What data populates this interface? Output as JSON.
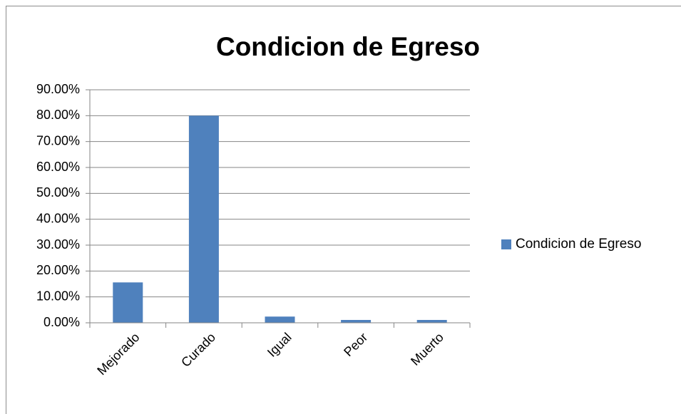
{
  "chart_data": {
    "type": "bar",
    "title": "Condicion de Egreso",
    "categories": [
      "Mejorado",
      "Curado",
      "Igual",
      "Peor",
      "Muerto"
    ],
    "series": [
      {
        "name": "Condicion de Egreso",
        "color": "#4f81bd",
        "values": [
          15.6,
          80,
          2.4,
          1.1,
          1.1
        ]
      }
    ],
    "ylim": [
      0,
      90
    ],
    "yticks": [
      {
        "value": 0,
        "label": "0.00%"
      },
      {
        "value": 10,
        "label": "10.00%"
      },
      {
        "value": 20,
        "label": "20.00%"
      },
      {
        "value": 30,
        "label": "30.00%"
      },
      {
        "value": 40,
        "label": "40.00%"
      },
      {
        "value": 50,
        "label": "50.00%"
      },
      {
        "value": 60,
        "label": "60.00%"
      },
      {
        "value": 70,
        "label": "70.00%"
      },
      {
        "value": 80,
        "label": "80.00%"
      },
      {
        "value": 90,
        "label": "90.00%"
      }
    ],
    "grid": true,
    "legend": "right"
  }
}
